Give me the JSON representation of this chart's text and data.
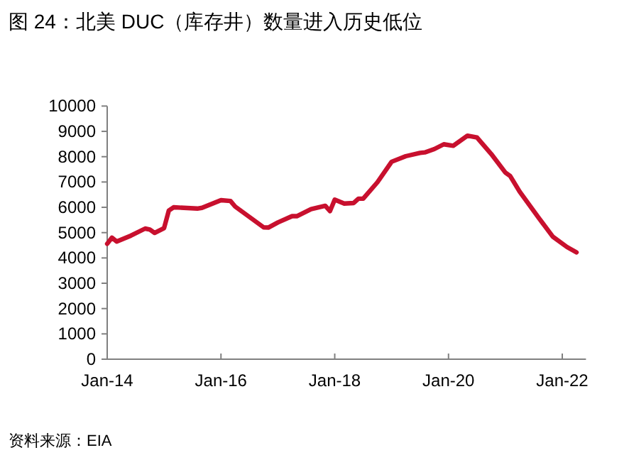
{
  "chart_data": {
    "type": "line",
    "title": "图 24：北美 DUC（库存井）数量进入历史低位",
    "annotations": [
      "资料来源：EIA"
    ],
    "x": [
      "2014-01",
      "2014-02",
      "2014-03",
      "2014-06",
      "2014-09",
      "2014-10",
      "2014-11",
      "2015-01",
      "2015-02",
      "2015-03",
      "2015-08",
      "2015-09",
      "2016-01",
      "2016-03",
      "2016-04",
      "2016-10",
      "2016-11",
      "2017-01",
      "2017-04",
      "2017-05",
      "2017-08",
      "2017-11",
      "2017-12",
      "2018-01",
      "2018-03",
      "2018-05",
      "2018-06",
      "2018-07",
      "2018-10",
      "2019-01",
      "2019-04",
      "2019-07",
      "2019-08",
      "2019-10",
      "2019-12",
      "2020-02",
      "2020-05",
      "2020-07",
      "2020-10",
      "2021-01",
      "2021-02",
      "2021-04",
      "2021-08",
      "2021-11",
      "2022-02",
      "2022-04"
    ],
    "series": [
      {
        "color": "#c8102e",
        "values": [
          4560,
          4800,
          4650,
          4880,
          5160,
          5120,
          4990,
          5180,
          5870,
          6000,
          5950,
          5980,
          6280,
          6250,
          6030,
          5210,
          5200,
          5400,
          5650,
          5650,
          5930,
          6060,
          5850,
          6300,
          6150,
          6170,
          6340,
          6340,
          6990,
          7800,
          8020,
          8150,
          8170,
          8300,
          8490,
          8430,
          8830,
          8760,
          8110,
          7370,
          7240,
          6620,
          5590,
          4840,
          4430,
          4220
        ]
      }
    ],
    "xlim": [
      "2014-01",
      "2022-06"
    ],
    "xticks": [
      {
        "value": "2014-01",
        "label": "Jan-14"
      },
      {
        "value": "2016-01",
        "label": "Jan-16"
      },
      {
        "value": "2018-01",
        "label": "Jan-18"
      },
      {
        "value": "2020-01",
        "label": "Jan-20"
      },
      {
        "value": "2022-01",
        "label": "Jan-22"
      }
    ],
    "ylim": [
      0,
      10000
    ],
    "yticks": [
      0,
      1000,
      2000,
      3000,
      4000,
      5000,
      6000,
      7000,
      8000,
      9000,
      10000
    ],
    "grid": false,
    "marker": "none",
    "line_style": "solid"
  }
}
